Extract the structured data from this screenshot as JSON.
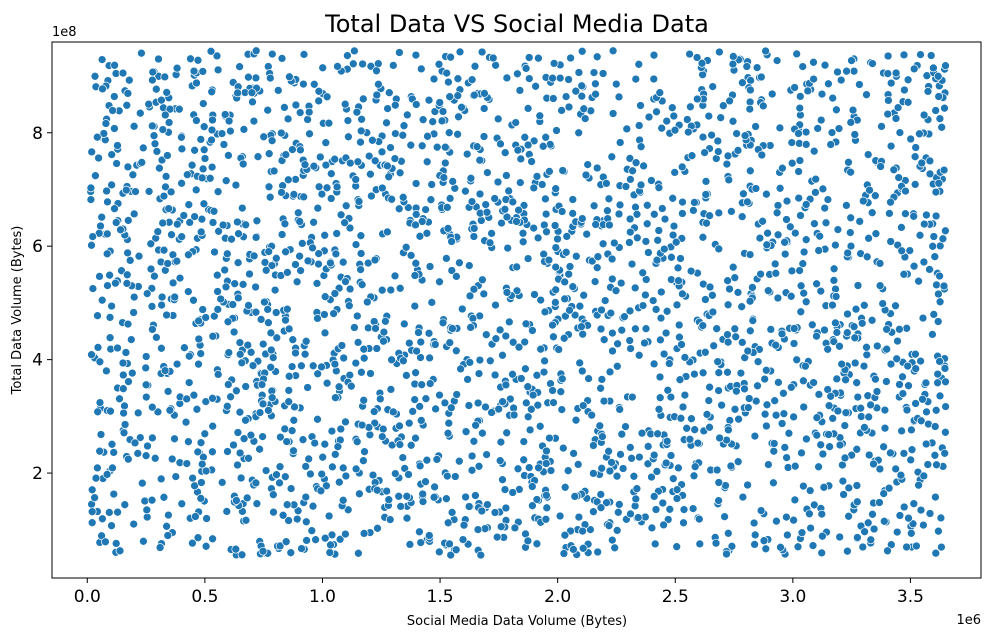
{
  "chart_data": {
    "type": "scatter",
    "title": "Total Data VS Social Media Data",
    "xlabel": "Social Media Data Volume (Bytes)",
    "ylabel": "Total Data Volume (Bytes)",
    "x_offset_label": "1e6",
    "y_offset_label": "1e8",
    "xlim": [
      -150000,
      3800000
    ],
    "ylim": [
      15000000,
      960000000
    ],
    "x_ticks": [
      0,
      500000,
      1000000,
      1500000,
      2000000,
      2500000,
      3000000,
      3500000
    ],
    "x_tick_labels": [
      "0.0",
      "0.5",
      "1.0",
      "1.5",
      "2.0",
      "2.5",
      "3.0",
      "3.5"
    ],
    "y_ticks": [
      200000000,
      400000000,
      600000000,
      800000000
    ],
    "y_tick_labels": [
      "2",
      "4",
      "6",
      "8"
    ],
    "grid": false,
    "legend": "none",
    "marker_color": "#1f77b4",
    "marker_edge_color": "#ffffff",
    "points": {
      "description_generated": "uniform",
      "count": 2700,
      "x_range": [
        10000,
        3650000
      ],
      "y_range": [
        55000000,
        945000000
      ]
    }
  }
}
